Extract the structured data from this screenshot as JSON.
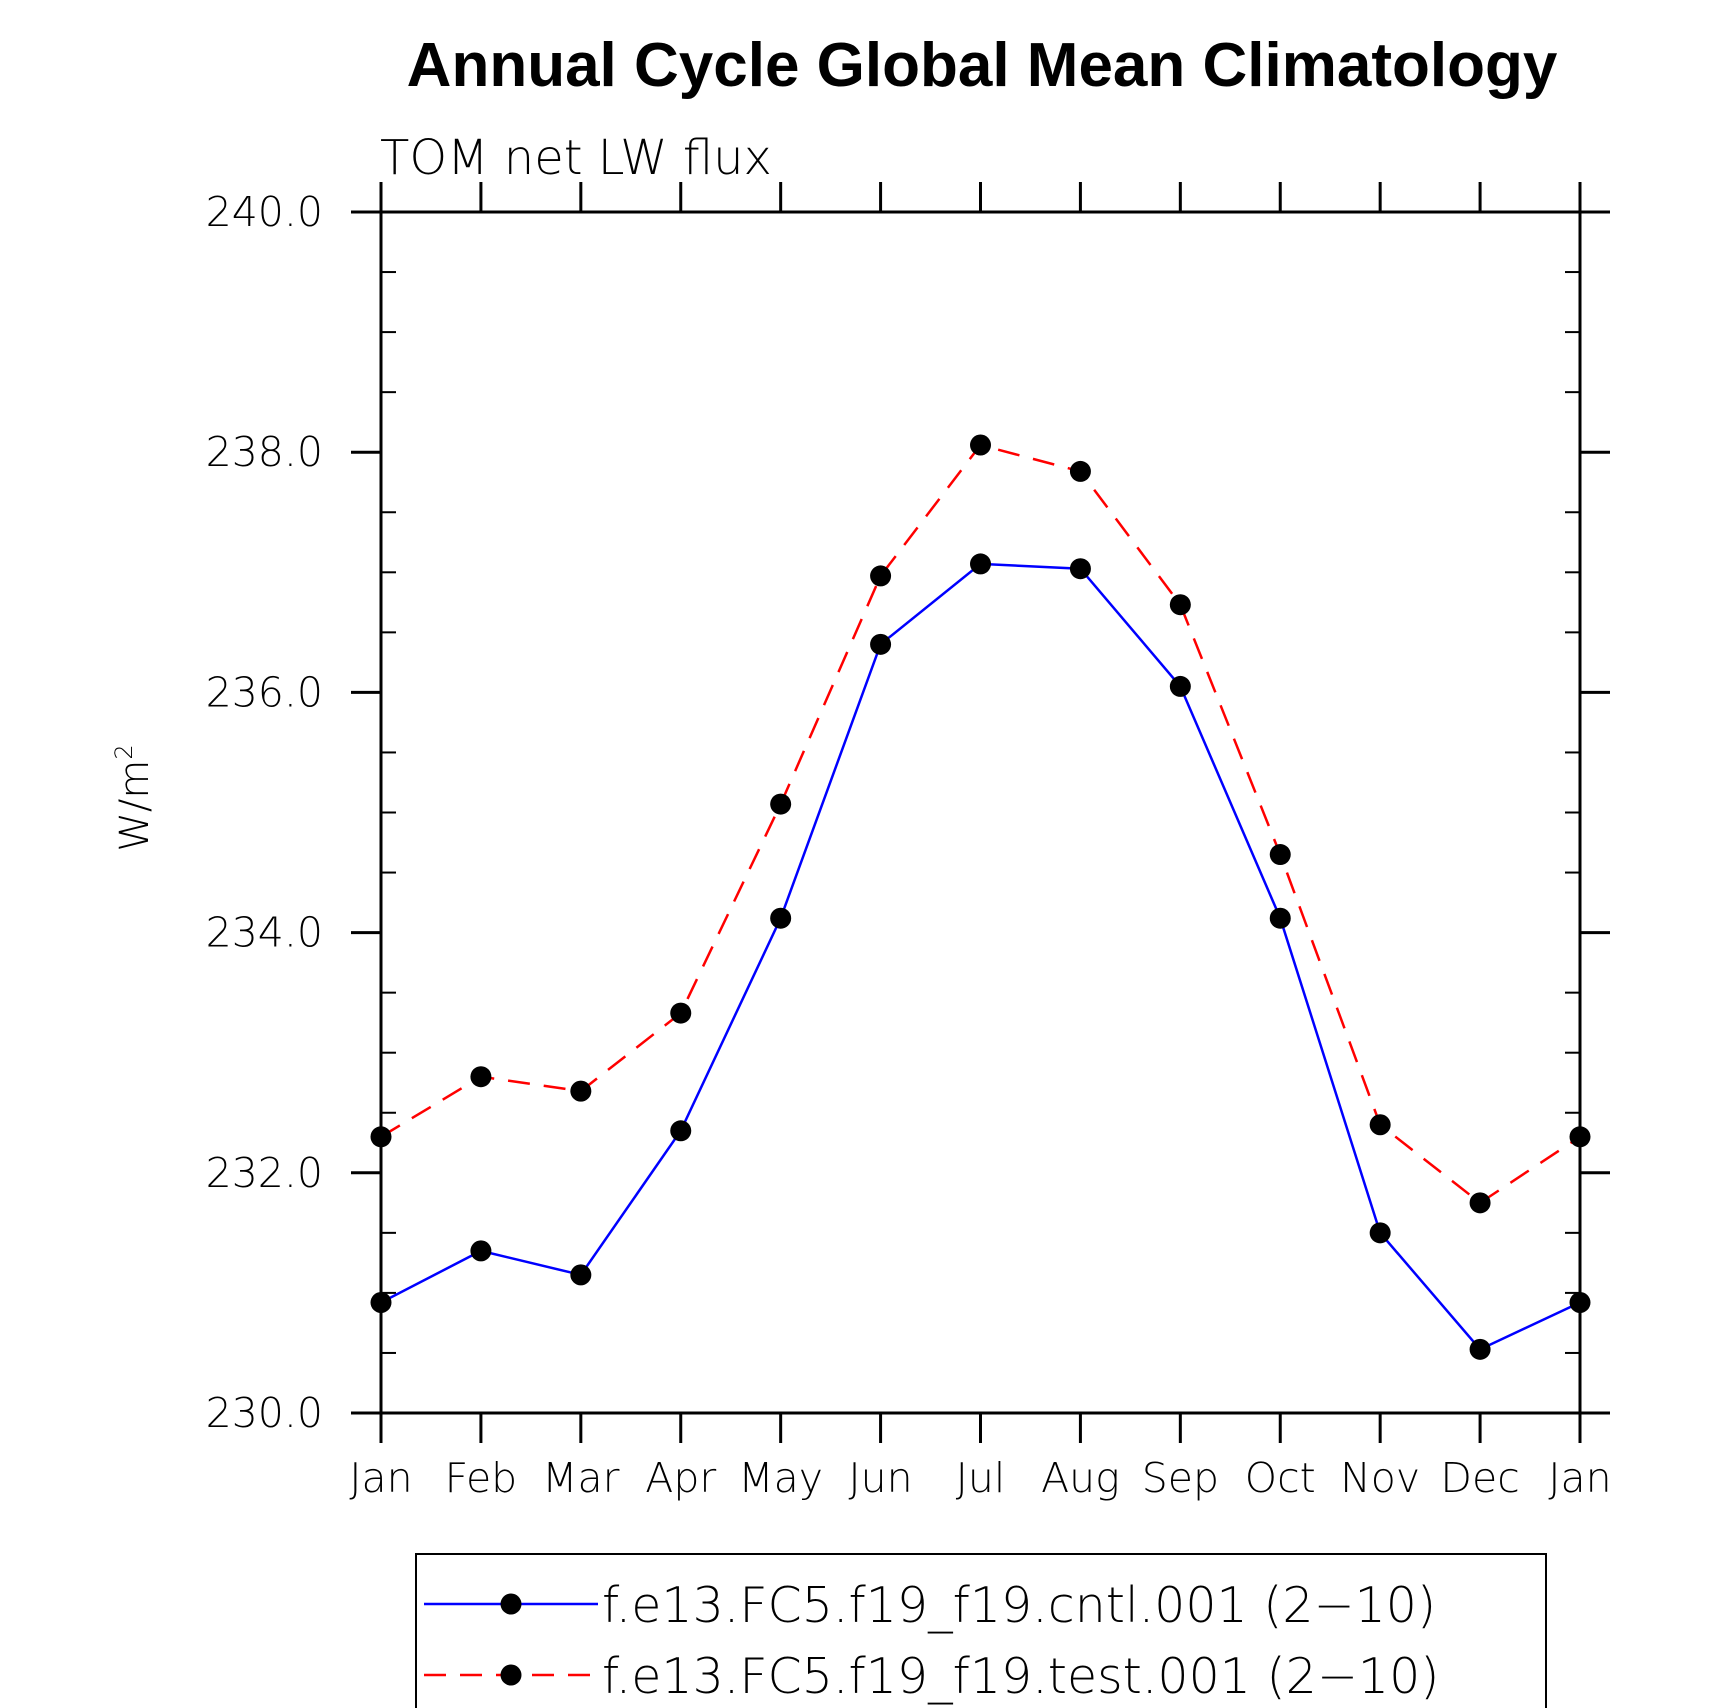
{
  "chart_data": {
    "type": "line",
    "title": "Annual Cycle Global Mean Climatology",
    "subtitle": "TOM net LW flux",
    "ylabel": "W/m",
    "ylabel_superscript": "2",
    "ylim": [
      230.0,
      240.0
    ],
    "yticks": [
      "230.0",
      "232.0",
      "234.0",
      "236.0",
      "238.0",
      "240.0"
    ],
    "categories": [
      "Jan",
      "Feb",
      "Mar",
      "Apr",
      "May",
      "Jun",
      "Jul",
      "Aug",
      "Sep",
      "Oct",
      "Nov",
      "Dec",
      "Jan"
    ],
    "series": [
      {
        "name": "f.e13.FC5.f19_f19.cntl.001 (2−10)",
        "color": "#0000ff",
        "line_style": "solid",
        "marker": "filled-circle",
        "values": [
          230.92,
          231.35,
          231.15,
          232.35,
          234.12,
          236.4,
          237.07,
          237.03,
          236.05,
          234.12,
          231.5,
          230.53,
          230.92
        ]
      },
      {
        "name": "f.e13.FC5.f19_f19.test.001 (2−10)",
        "color": "#ff0000",
        "line_style": "dashed",
        "marker": "filled-circle",
        "values": [
          232.3,
          232.8,
          232.68,
          233.33,
          235.07,
          236.97,
          238.06,
          237.84,
          236.73,
          234.65,
          232.4,
          231.75,
          232.3
        ]
      }
    ],
    "grid": false,
    "legend_position": "bottom"
  }
}
